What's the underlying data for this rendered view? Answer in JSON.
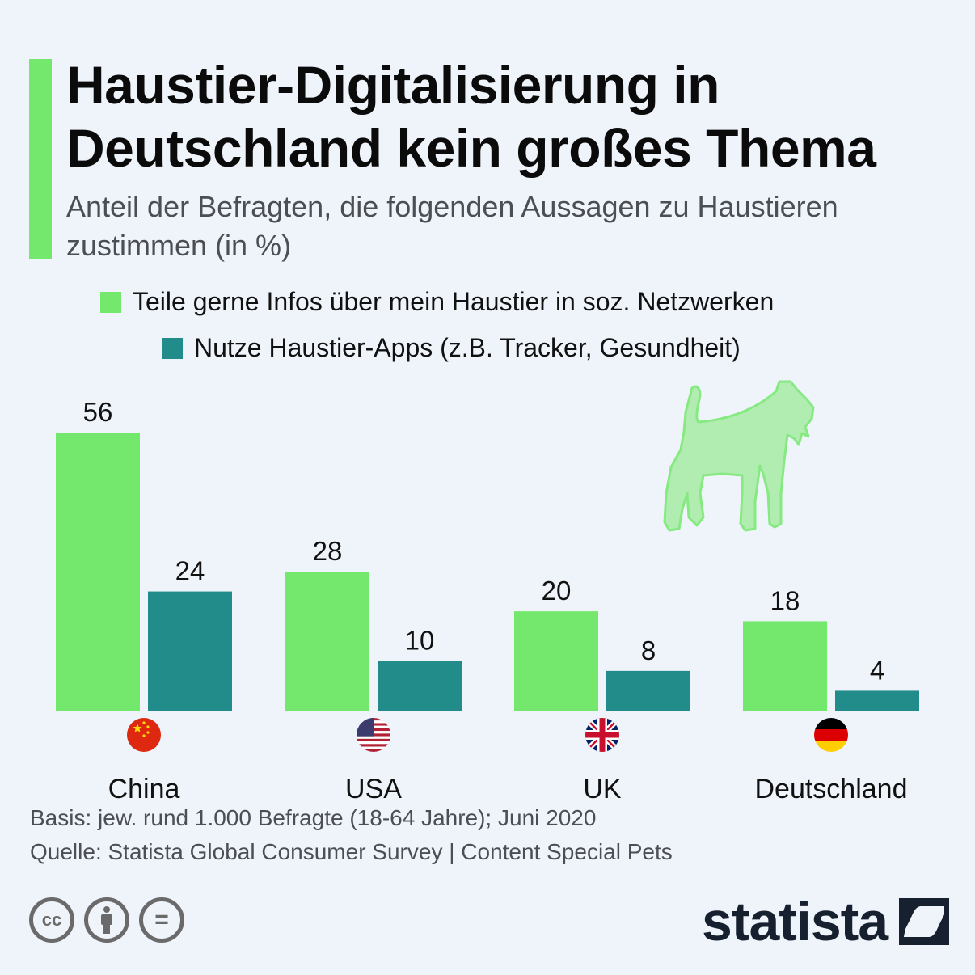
{
  "header": {
    "title": "Haustier-Digitalisierung in Deutschland kein großes Thema",
    "subtitle": "Anteil der Befragten, die folgenden Aussagen zu Haustieren zustimmen (in %)"
  },
  "colors": {
    "accent": "#74e86d",
    "series_1": "#74e86d",
    "series_2": "#218c89",
    "background": "#eff4fb",
    "logo": "#17202f"
  },
  "chart_data": {
    "type": "bar",
    "title": "Haustier-Digitalisierung in Deutschland kein großes Thema",
    "subtitle": "Anteil der Befragten, die folgenden Aussagen zu Haustieren zustimmen (in %)",
    "categories": [
      "China",
      "USA",
      "UK",
      "Deutschland"
    ],
    "category_icons": [
      "flag-china-icon",
      "flag-usa-icon",
      "flag-uk-icon",
      "flag-germany-icon"
    ],
    "series": [
      {
        "name": "Teile gerne Infos über mein Haustier in soz. Netzwerken",
        "color": "#74e86d",
        "values": [
          56,
          28,
          20,
          18
        ]
      },
      {
        "name": "Nutze Haustier-Apps (z.B. Tracker, Gesundheit)",
        "color": "#218c89",
        "values": [
          24,
          10,
          8,
          4
        ]
      }
    ],
    "xlabel": "",
    "ylabel": "in %",
    "ylim": [
      0,
      56
    ],
    "grid": false,
    "legend_position": "top-center",
    "data_labels": true
  },
  "decoration": {
    "illustration": "dog-icon"
  },
  "footer": {
    "basis": "Basis: jew. rund 1.000 Befragte (18-64 Jahre); Juni 2020",
    "source": "Quelle: Statista Global Consumer Survey | Content Special Pets",
    "license_icons": [
      "cc-icon",
      "by-icon",
      "nd-icon"
    ],
    "cc_text": "cc",
    "nd_text": "=",
    "logo_text": "statista"
  }
}
